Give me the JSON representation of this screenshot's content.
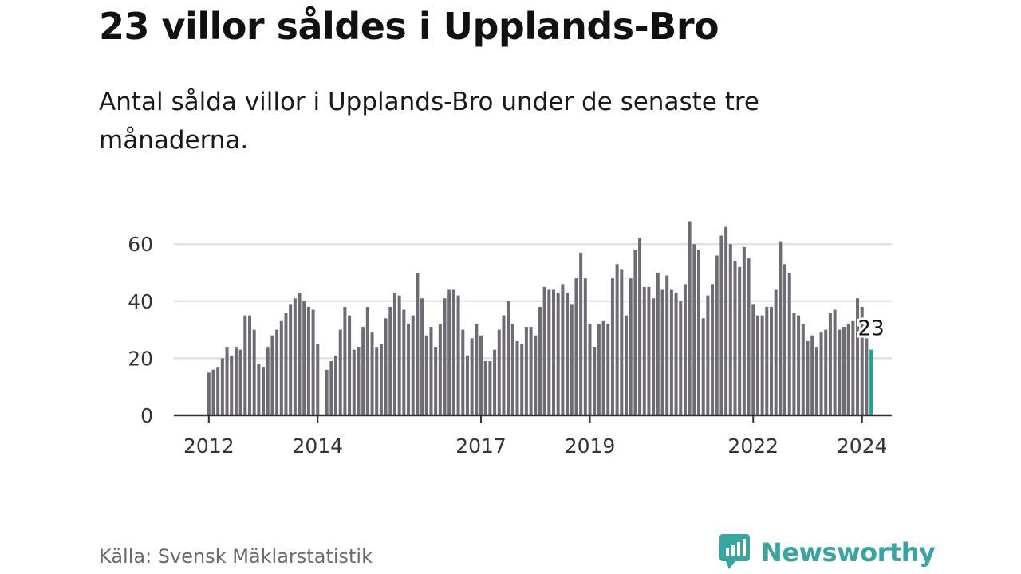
{
  "title": "23 villor såldes i Upplands-Bro",
  "subtitle": "Antal sålda villor i Upplands-Bro under de senaste tre månaderna.",
  "source": "Källa: Svensk Mäklarstatistik",
  "brand": "Newsworthy",
  "colors": {
    "bar": "#6e6c72",
    "highlight": "#1aa59a",
    "grid": "#dddddd",
    "axis": "#333333",
    "brand": "#3aa5a0"
  },
  "chart_data": {
    "type": "bar",
    "x_start": 2012,
    "ylim": [
      0,
      70
    ],
    "yticks": [
      0,
      20,
      40,
      60
    ],
    "xticks": [
      "2012",
      "2014",
      "2017",
      "2019",
      "2022",
      "2024"
    ],
    "highlight_label": "23",
    "values": [
      15,
      16,
      17,
      20,
      24,
      21,
      24,
      23,
      35,
      35,
      30,
      18,
      17,
      24,
      28,
      30,
      33,
      36,
      39,
      41,
      43,
      40,
      38,
      37,
      25,
      0,
      16,
      19,
      21,
      30,
      38,
      35,
      23,
      24,
      31,
      38,
      29,
      24,
      25,
      34,
      38,
      43,
      42,
      37,
      32,
      35,
      50,
      41,
      28,
      31,
      24,
      32,
      41,
      44,
      44,
      42,
      30,
      21,
      27,
      32,
      28,
      19,
      19,
      23,
      30,
      35,
      40,
      32,
      26,
      25,
      31,
      31,
      28,
      38,
      45,
      44,
      44,
      43,
      46,
      43,
      39,
      48,
      57,
      48,
      32,
      24,
      32,
      33,
      32,
      48,
      53,
      51,
      35,
      48,
      58,
      62,
      45,
      45,
      41,
      50,
      44,
      49,
      44,
      43,
      40,
      46,
      68,
      60,
      58,
      34,
      42,
      46,
      56,
      63,
      66,
      60,
      54,
      52,
      59,
      55,
      39,
      35,
      35,
      38,
      38,
      44,
      61,
      53,
      50,
      36,
      35,
      32,
      26,
      28,
      24,
      29,
      30,
      36,
      37,
      30,
      31,
      32,
      33,
      41,
      38,
      27,
      23
    ]
  }
}
